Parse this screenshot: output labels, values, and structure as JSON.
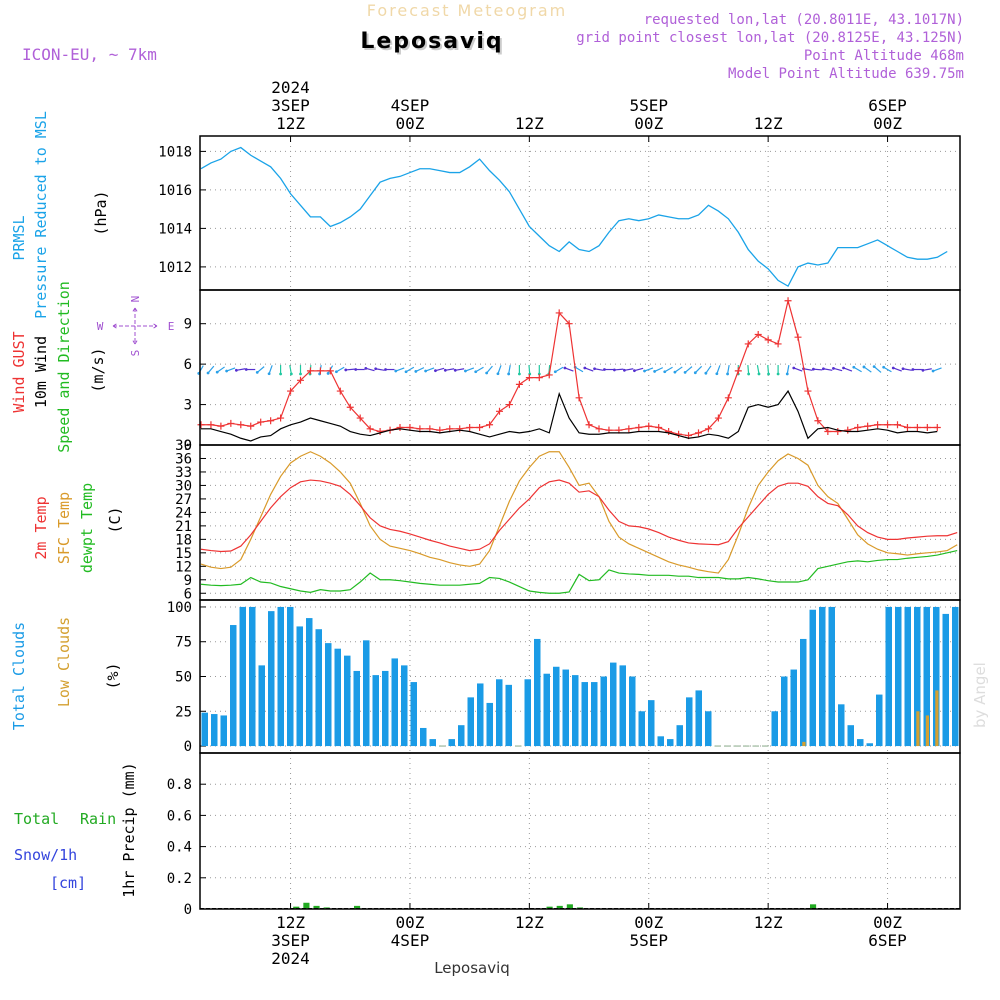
{
  "header": {
    "subtitle": "Forecast Meteogram",
    "location": "Leposaviq",
    "model": "ICON-EU, ~ 7km",
    "requested": "requested lon,lat (20.8011E, 43.1017N)",
    "grid": "grid point closest lon,lat (20.8125E, 43.125N)",
    "point_alt": "Point Altitude 468m",
    "model_alt": "Model Point Altitude 639.75m",
    "watermark": "by Angel",
    "footer": "Leposaviq"
  },
  "time_axis": {
    "start": "2024-09-03 03Z",
    "step_hours": 1,
    "top_labels": [
      {
        "hour": 9,
        "lines": [
          "2024",
          "3SEP",
          "12Z"
        ]
      },
      {
        "hour": 21,
        "lines": [
          "4SEP",
          "00Z"
        ]
      },
      {
        "hour": 33,
        "lines": [
          "12Z"
        ]
      },
      {
        "hour": 45,
        "lines": [
          "5SEP",
          "00Z"
        ]
      },
      {
        "hour": 57,
        "lines": [
          "12Z"
        ]
      },
      {
        "hour": 69,
        "lines": [
          "6SEP",
          "00Z"
        ]
      }
    ],
    "bottom_labels": [
      {
        "hour": 9,
        "lines": [
          "12Z",
          "3SEP",
          "2024"
        ]
      },
      {
        "hour": 21,
        "lines": [
          "00Z",
          "4SEP"
        ]
      },
      {
        "hour": 33,
        "lines": [
          "12Z"
        ]
      },
      {
        "hour": 45,
        "lines": [
          "00Z",
          "5SEP"
        ]
      },
      {
        "hour": 57,
        "lines": [
          "12Z"
        ]
      },
      {
        "hour": 69,
        "lines": [
          "00Z",
          "6SEP"
        ]
      }
    ]
  },
  "colors": {
    "pressure": "#1aa3e8",
    "gust": "#ee3333",
    "wind": "#000000",
    "temp2m": "#ee3333",
    "sfc": "#d99a2a",
    "dew": "#22bb22",
    "clouds_total": "#1a9be6",
    "clouds_low": "#d4a030",
    "rain": "#22aa22",
    "snow": "#3344dd",
    "grid": "#999999",
    "labels_purple": "#a050d0"
  },
  "chart_data": [
    {
      "type": "line",
      "name": "pressure",
      "title": "PRMSL Pressure Reduced to MSL",
      "ylabel": "(hPa)",
      "ylabel_lines": [
        "PRMSL",
        "Pressure Reduced to MSL"
      ],
      "unit_label": "(hPa)",
      "ylim": [
        1010.8,
        1018.8
      ],
      "yticks": [
        1012,
        1014,
        1016,
        1018
      ],
      "values": [
        1017.1,
        1017.4,
        1017.6,
        1018.0,
        1018.2,
        1017.8,
        1017.5,
        1017.2,
        1016.6,
        1015.8,
        1015.2,
        1014.6,
        1014.6,
        1014.1,
        1014.3,
        1014.6,
        1015.0,
        1015.7,
        1016.4,
        1016.6,
        1016.7,
        1016.9,
        1017.1,
        1017.1,
        1017.0,
        1016.9,
        1016.9,
        1017.2,
        1017.6,
        1017.0,
        1016.5,
        1015.9,
        1015.0,
        1014.1,
        1013.6,
        1013.1,
        1012.8,
        1013.3,
        1012.9,
        1012.8,
        1013.1,
        1013.8,
        1014.4,
        1014.5,
        1014.4,
        1014.5,
        1014.7,
        1014.6,
        1014.5,
        1014.5,
        1014.7,
        1015.2,
        1014.9,
        1014.5,
        1013.8,
        1012.9,
        1012.3,
        1011.9,
        1011.3,
        1011.0,
        1012.0,
        1012.2,
        1012.1,
        1012.2,
        1013.0,
        1013.0,
        1013.0,
        1013.2,
        1013.4,
        1013.1,
        1012.8,
        1012.5,
        1012.4,
        1012.4,
        1012.5,
        1012.8
      ]
    },
    {
      "type": "line",
      "name": "wind",
      "ylabel_lines": [
        "Wind GUST",
        "10m Wind",
        "Speed and Direction",
        "(m/s)"
      ],
      "compass": [
        "N",
        "S",
        "W",
        "E"
      ],
      "ylim": [
        0,
        11.5
      ],
      "yticks": [
        0,
        3,
        6,
        9
      ],
      "series": [
        {
          "name": "Wind GUST",
          "values": [
            1.5,
            1.5,
            1.4,
            1.6,
            1.5,
            1.4,
            1.7,
            1.8,
            2.0,
            4.0,
            4.8,
            5.5,
            5.5,
            5.5,
            4.0,
            2.8,
            2.0,
            1.2,
            1.0,
            1.1,
            1.3,
            1.3,
            1.2,
            1.2,
            1.1,
            1.2,
            1.2,
            1.3,
            1.3,
            1.5,
            2.5,
            3.0,
            4.5,
            5.0,
            5.0,
            5.2,
            9.8,
            9.0,
            3.5,
            1.5,
            1.2,
            1.1,
            1.1,
            1.2,
            1.3,
            1.4,
            1.3,
            1.0,
            0.8,
            0.7,
            0.9,
            1.2,
            2.0,
            3.5,
            5.5,
            7.5,
            8.2,
            7.8,
            7.5,
            10.7,
            8.0,
            4.0,
            1.8,
            1.0,
            1.0,
            1.1,
            1.3,
            1.4,
            1.5,
            1.5,
            1.5,
            1.3,
            1.3,
            1.3,
            1.3
          ]
        },
        {
          "name": "10m Wind",
          "values": [
            1.2,
            1.2,
            1.0,
            0.8,
            0.5,
            0.3,
            0.6,
            0.7,
            1.2,
            1.5,
            1.7,
            2.0,
            1.8,
            1.6,
            1.4,
            1.0,
            0.8,
            0.7,
            0.9,
            1.1,
            1.2,
            1.1,
            1.0,
            1.0,
            0.9,
            1.0,
            1.1,
            1.0,
            0.8,
            0.6,
            0.8,
            1.0,
            0.9,
            1.0,
            1.2,
            0.9,
            3.8,
            2.0,
            0.9,
            0.8,
            0.8,
            0.9,
            0.9,
            0.9,
            1.0,
            1.0,
            1.0,
            0.9,
            0.7,
            0.5,
            0.6,
            0.8,
            0.7,
            0.5,
            1.0,
            2.8,
            3.0,
            2.8,
            3.0,
            4.0,
            2.5,
            0.5,
            1.2,
            1.3,
            1.1,
            1.0,
            1.0,
            1.1,
            1.2,
            1.1,
            0.9,
            1.0,
            1.0,
            0.9,
            1.0
          ]
        }
      ],
      "barb_dir": [
        210,
        220,
        235,
        250,
        260,
        270,
        230,
        200,
        180,
        170,
        180,
        185,
        190,
        210,
        240,
        265,
        270,
        285,
        280,
        270,
        250,
        240,
        245,
        250,
        255,
        260,
        260,
        250,
        240,
        220,
        200,
        190,
        180,
        175,
        180,
        185,
        240,
        290,
        300,
        290,
        280,
        270,
        265,
        260,
        255,
        250,
        245,
        240,
        235,
        230,
        225,
        215,
        200,
        190,
        180,
        175,
        170,
        175,
        180,
        190,
        290,
        280,
        275,
        280,
        285,
        290,
        300,
        305,
        310,
        300,
        290,
        280,
        270,
        260,
        250
      ]
    },
    {
      "type": "line",
      "name": "temperature",
      "ylabel_lines": [
        "2m Temp",
        "SFC Temp",
        "dewpt Temp",
        "(C)"
      ],
      "ylim": [
        4.5,
        39
      ],
      "yticks": [
        6,
        9,
        12,
        15,
        18,
        21,
        24,
        27,
        30,
        33,
        36,
        39
      ],
      "series": [
        {
          "name": "2m Temp",
          "values": [
            15.8,
            15.5,
            15.3,
            15.4,
            16.5,
            19.0,
            22.0,
            25.0,
            27.5,
            29.5,
            30.8,
            31.2,
            31.0,
            30.5,
            29.8,
            28.0,
            25.5,
            22.8,
            21.0,
            20.2,
            19.8,
            19.2,
            18.5,
            17.8,
            17.2,
            16.5,
            16.0,
            15.5,
            15.8,
            17.0,
            20.0,
            22.5,
            25.0,
            27.0,
            29.5,
            30.8,
            31.2,
            30.5,
            28.5,
            28.8,
            27.5,
            24.5,
            22.0,
            21.0,
            20.8,
            20.3,
            19.5,
            18.5,
            17.8,
            17.2,
            17.0,
            16.9,
            16.8,
            17.5,
            20.5,
            23.0,
            25.5,
            28.0,
            29.8,
            30.5,
            30.5,
            29.8,
            27.5,
            26.0,
            25.5,
            23.5,
            21.0,
            19.5,
            18.5,
            18.0,
            18.0,
            18.3,
            18.5,
            18.7,
            18.8,
            18.8,
            19.5
          ]
        },
        {
          "name": "SFC Temp",
          "values": [
            12.5,
            11.8,
            11.5,
            11.8,
            13.5,
            18.0,
            23.0,
            28.0,
            32.0,
            35.0,
            36.5,
            37.5,
            36.5,
            35.0,
            33.0,
            30.5,
            26.0,
            21.0,
            18.0,
            16.5,
            16.0,
            15.5,
            14.8,
            14.0,
            13.5,
            12.8,
            12.3,
            12.0,
            12.5,
            15.5,
            21.0,
            26.5,
            31.0,
            34.0,
            36.5,
            37.5,
            37.5,
            34.0,
            30.0,
            30.5,
            27.5,
            22.0,
            18.5,
            17.0,
            16.0,
            15.0,
            14.0,
            13.0,
            12.3,
            11.8,
            11.2,
            10.8,
            10.5,
            13.5,
            19.0,
            25.0,
            30.0,
            33.0,
            35.5,
            37.0,
            36.0,
            34.5,
            30.0,
            27.5,
            26.0,
            22.5,
            19.0,
            17.0,
            15.8,
            15.0,
            14.8,
            14.5,
            14.8,
            15.0,
            15.2,
            15.5,
            16.8
          ]
        },
        {
          "name": "dewpt Temp",
          "values": [
            8.0,
            7.8,
            7.7,
            7.8,
            8.0,
            9.5,
            8.5,
            8.3,
            7.5,
            7.0,
            6.5,
            6.2,
            6.8,
            6.5,
            6.5,
            6.8,
            8.5,
            10.5,
            9.0,
            9.0,
            8.8,
            8.5,
            8.2,
            8.0,
            7.8,
            7.8,
            7.8,
            8.0,
            8.2,
            9.5,
            9.3,
            8.5,
            7.5,
            6.5,
            6.2,
            6.0,
            6.0,
            6.3,
            10.2,
            8.8,
            9.0,
            11.2,
            10.5,
            10.3,
            10.2,
            10.0,
            10.0,
            10.0,
            9.8,
            9.8,
            9.5,
            9.5,
            9.5,
            9.2,
            9.2,
            9.5,
            9.2,
            8.8,
            8.5,
            8.5,
            8.5,
            9.0,
            11.5,
            12.0,
            12.5,
            13.0,
            13.2,
            13.0,
            13.3,
            13.5,
            13.5,
            13.8,
            14.0,
            14.2,
            14.5,
            15.0,
            15.5
          ]
        }
      ]
    },
    {
      "type": "bar",
      "name": "clouds",
      "ylabel_lines": [
        "Total Clouds",
        "Low Clouds",
        "(%)"
      ],
      "ylim": [
        -5,
        105
      ],
      "yticks": [
        0,
        25,
        50,
        75,
        100
      ],
      "series": [
        {
          "name": "Total Clouds",
          "values": [
            24,
            23,
            22,
            87,
            100,
            100,
            58,
            97,
            100,
            100,
            86,
            92,
            84,
            74,
            70,
            65,
            54,
            76,
            51,
            54,
            63,
            58,
            46,
            13,
            5,
            0,
            5,
            15,
            35,
            45,
            31,
            48,
            44,
            0,
            48,
            77,
            52,
            57,
            55,
            51,
            46,
            46,
            50,
            60,
            58,
            50,
            25,
            33,
            7,
            5,
            15,
            35,
            40,
            25,
            0,
            0,
            0,
            0,
            0,
            0,
            25,
            50,
            55,
            77,
            98,
            100,
            100,
            30,
            15,
            5,
            2,
            37,
            100,
            100,
            100,
            100,
            100,
            100,
            95,
            100
          ]
        },
        {
          "name": "Low Clouds",
          "values": [
            0,
            0,
            0,
            0,
            0,
            0,
            0,
            0,
            0,
            0,
            0,
            0,
            0,
            0,
            0,
            0,
            0,
            0,
            0,
            0,
            0,
            0,
            0,
            0,
            0,
            0,
            0,
            0,
            0,
            0,
            0,
            0,
            0,
            0,
            0,
            0,
            0,
            0,
            0,
            0,
            0,
            0,
            0,
            0,
            0,
            0,
            0,
            0,
            0,
            0,
            0,
            0,
            0,
            0,
            0,
            0,
            0,
            0,
            0,
            0,
            0,
            0,
            0,
            3,
            0,
            0,
            0,
            0,
            0,
            0,
            0,
            0,
            0,
            0,
            0,
            25,
            22,
            40,
            0,
            0
          ]
        }
      ]
    },
    {
      "type": "bar",
      "name": "precip",
      "ylabel_lines": [
        "Total",
        "Rain",
        "Snow/1h",
        "[cm]",
        "1hr Precip (mm)"
      ],
      "ylim": [
        0,
        1.0
      ],
      "yticks": [
        0,
        0.2,
        0.4,
        0.6,
        0.8
      ],
      "ytick_labels": [
        "0",
        "0.2",
        "0.4",
        "0.6",
        "0.8"
      ],
      "series": [
        {
          "name": "Rain",
          "values": [
            0,
            0,
            0,
            0,
            0,
            0,
            0,
            0,
            0,
            0.015,
            0.04,
            0.02,
            0.01,
            0,
            0,
            0.02,
            0,
            0,
            0,
            0,
            0,
            0,
            0,
            0,
            0,
            0,
            0,
            0,
            0,
            0,
            0,
            0,
            0,
            0,
            0.015,
            0.02,
            0.03,
            0.01,
            0,
            0,
            0,
            0,
            0,
            0,
            0,
            0,
            0,
            0,
            0,
            0,
            0,
            0,
            0,
            0,
            0,
            0,
            0,
            0,
            0,
            0,
            0.03,
            0,
            0,
            0,
            0,
            0,
            0,
            0,
            0,
            0,
            0,
            0,
            0,
            0,
            0
          ]
        },
        {
          "name": "Snow",
          "values": [
            0,
            0,
            0,
            0,
            0,
            0,
            0,
            0,
            0,
            0,
            0,
            0,
            0,
            0,
            0,
            0,
            0,
            0,
            0,
            0,
            0,
            0,
            0,
            0,
            0,
            0,
            0,
            0,
            0,
            0,
            0,
            0,
            0,
            0,
            0,
            0,
            0,
            0,
            0,
            0,
            0,
            0,
            0,
            0,
            0,
            0,
            0,
            0,
            0,
            0,
            0,
            0,
            0,
            0,
            0,
            0,
            0,
            0,
            0,
            0,
            0,
            0,
            0,
            0,
            0,
            0,
            0,
            0,
            0,
            0,
            0,
            0,
            0,
            0,
            0
          ]
        }
      ]
    }
  ]
}
